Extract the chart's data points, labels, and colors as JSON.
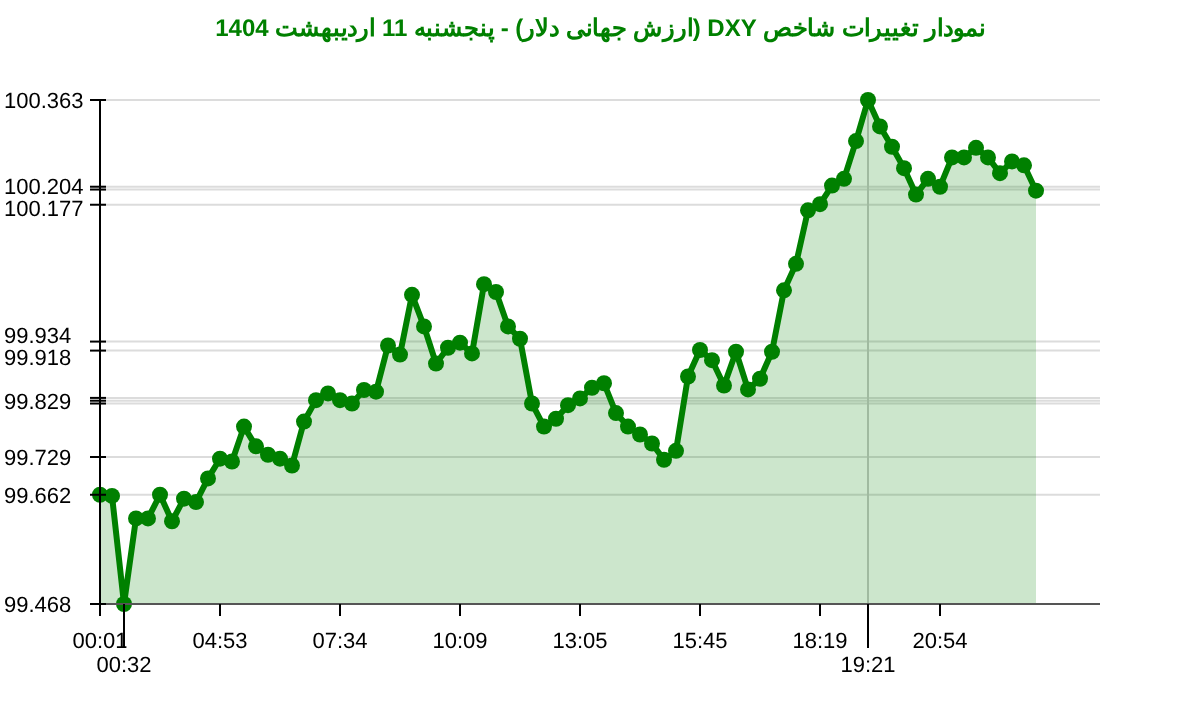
{
  "chart_data": {
    "type": "area",
    "title": "نمودار تغییرات شاخص DXY (ارزش جهانی دلار) - پنجشنبه  11 اردیبهشت 1404",
    "categories": [
      "00:01",
      null,
      "00:32",
      null,
      null,
      null,
      null,
      null,
      null,
      null,
      "04:53",
      null,
      null,
      null,
      null,
      null,
      null,
      null,
      null,
      null,
      "07:34",
      null,
      null,
      null,
      null,
      null,
      null,
      null,
      null,
      null,
      "10:09",
      null,
      null,
      null,
      null,
      null,
      null,
      null,
      null,
      null,
      "13:05",
      null,
      null,
      null,
      null,
      null,
      null,
      null,
      null,
      null,
      "15:45",
      null,
      null,
      null,
      null,
      null,
      null,
      null,
      null,
      null,
      "18:19",
      null,
      null,
      null,
      "19:21",
      null,
      null,
      null,
      null,
      null,
      "20:54",
      null,
      null,
      null,
      null,
      null,
      null,
      null,
      null
    ],
    "series": [
      {
        "color": "#008000",
        "values": [
          99.662,
          99.66,
          99.468,
          99.62,
          99.62,
          99.662,
          99.615,
          99.655,
          99.649,
          99.691,
          99.726,
          99.721,
          99.783,
          99.748,
          99.733,
          99.726,
          99.714,
          99.792,
          99.83,
          99.842,
          99.83,
          99.824,
          99.848,
          99.845,
          99.927,
          99.911,
          100.017,
          99.961,
          99.895,
          99.923,
          99.932,
          99.913,
          100.036,
          100.022,
          99.961,
          99.939,
          99.824,
          99.783,
          99.797,
          99.821,
          99.833,
          99.852,
          99.86,
          99.807,
          99.783,
          99.769,
          99.753,
          99.724,
          99.74,
          99.872,
          99.919,
          99.901,
          99.856,
          99.916,
          99.849,
          99.868,
          99.916,
          100.025,
          100.072,
          100.167,
          100.178,
          100.211,
          100.223,
          100.29,
          100.363,
          100.316,
          100.28,
          100.242,
          100.195,
          100.223,
          100.209,
          100.261,
          100.261,
          100.278,
          100.261,
          100.233,
          100.254,
          100.247,
          100.202
        ]
      }
    ],
    "ylim": [
      99.468,
      100.363
    ],
    "yticks": [
      99.468,
      99.662,
      99.729,
      {
        "value": 99.824,
        "label": null
      },
      99.829,
      {
        "value": 99.834,
        "label": null
      },
      99.918,
      99.934,
      100.177,
      100.204,
      {
        "value": 100.209,
        "label": null
      },
      100.363
    ],
    "grid": "y",
    "marker": "circle",
    "line_style": "solid",
    "ref_lines": [
      {
        "axis": "x",
        "value": "19:21",
        "label": null,
        "color": "#c8c8c8"
      }
    ]
  }
}
